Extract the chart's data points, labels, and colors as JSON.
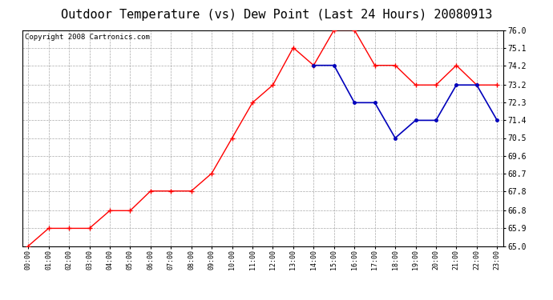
{
  "title": "Outdoor Temperature (vs) Dew Point (Last 24 Hours) 20080913",
  "copyright": "Copyright 2008 Cartronics.com",
  "x_labels": [
    "00:00",
    "01:00",
    "02:00",
    "03:00",
    "04:00",
    "05:00",
    "06:00",
    "07:00",
    "08:00",
    "09:00",
    "10:00",
    "11:00",
    "12:00",
    "13:00",
    "14:00",
    "15:00",
    "16:00",
    "17:00",
    "18:00",
    "19:00",
    "20:00",
    "21:00",
    "22:00",
    "23:00"
  ],
  "temp_values": [
    65.0,
    65.9,
    65.9,
    65.9,
    66.8,
    66.8,
    67.8,
    67.8,
    67.8,
    68.7,
    70.5,
    72.3,
    73.2,
    75.1,
    74.2,
    76.0,
    76.0,
    74.2,
    74.2,
    73.2,
    73.2,
    74.2,
    73.2,
    73.2
  ],
  "dew_values": [
    null,
    null,
    null,
    null,
    null,
    null,
    null,
    null,
    null,
    null,
    null,
    null,
    null,
    null,
    74.2,
    74.2,
    72.3,
    72.3,
    70.5,
    71.4,
    71.4,
    73.2,
    73.2,
    71.4
  ],
  "temp_color": "#ff0000",
  "dew_color": "#0000bb",
  "bg_color": "#ffffff",
  "grid_color": "#aaaaaa",
  "ylim_min": 65.0,
  "ylim_max": 76.0,
  "yticks": [
    65.0,
    65.9,
    66.8,
    67.8,
    68.7,
    69.6,
    70.5,
    71.4,
    72.3,
    73.2,
    74.2,
    75.1,
    76.0
  ],
  "title_fontsize": 11,
  "copyright_fontsize": 6.5
}
